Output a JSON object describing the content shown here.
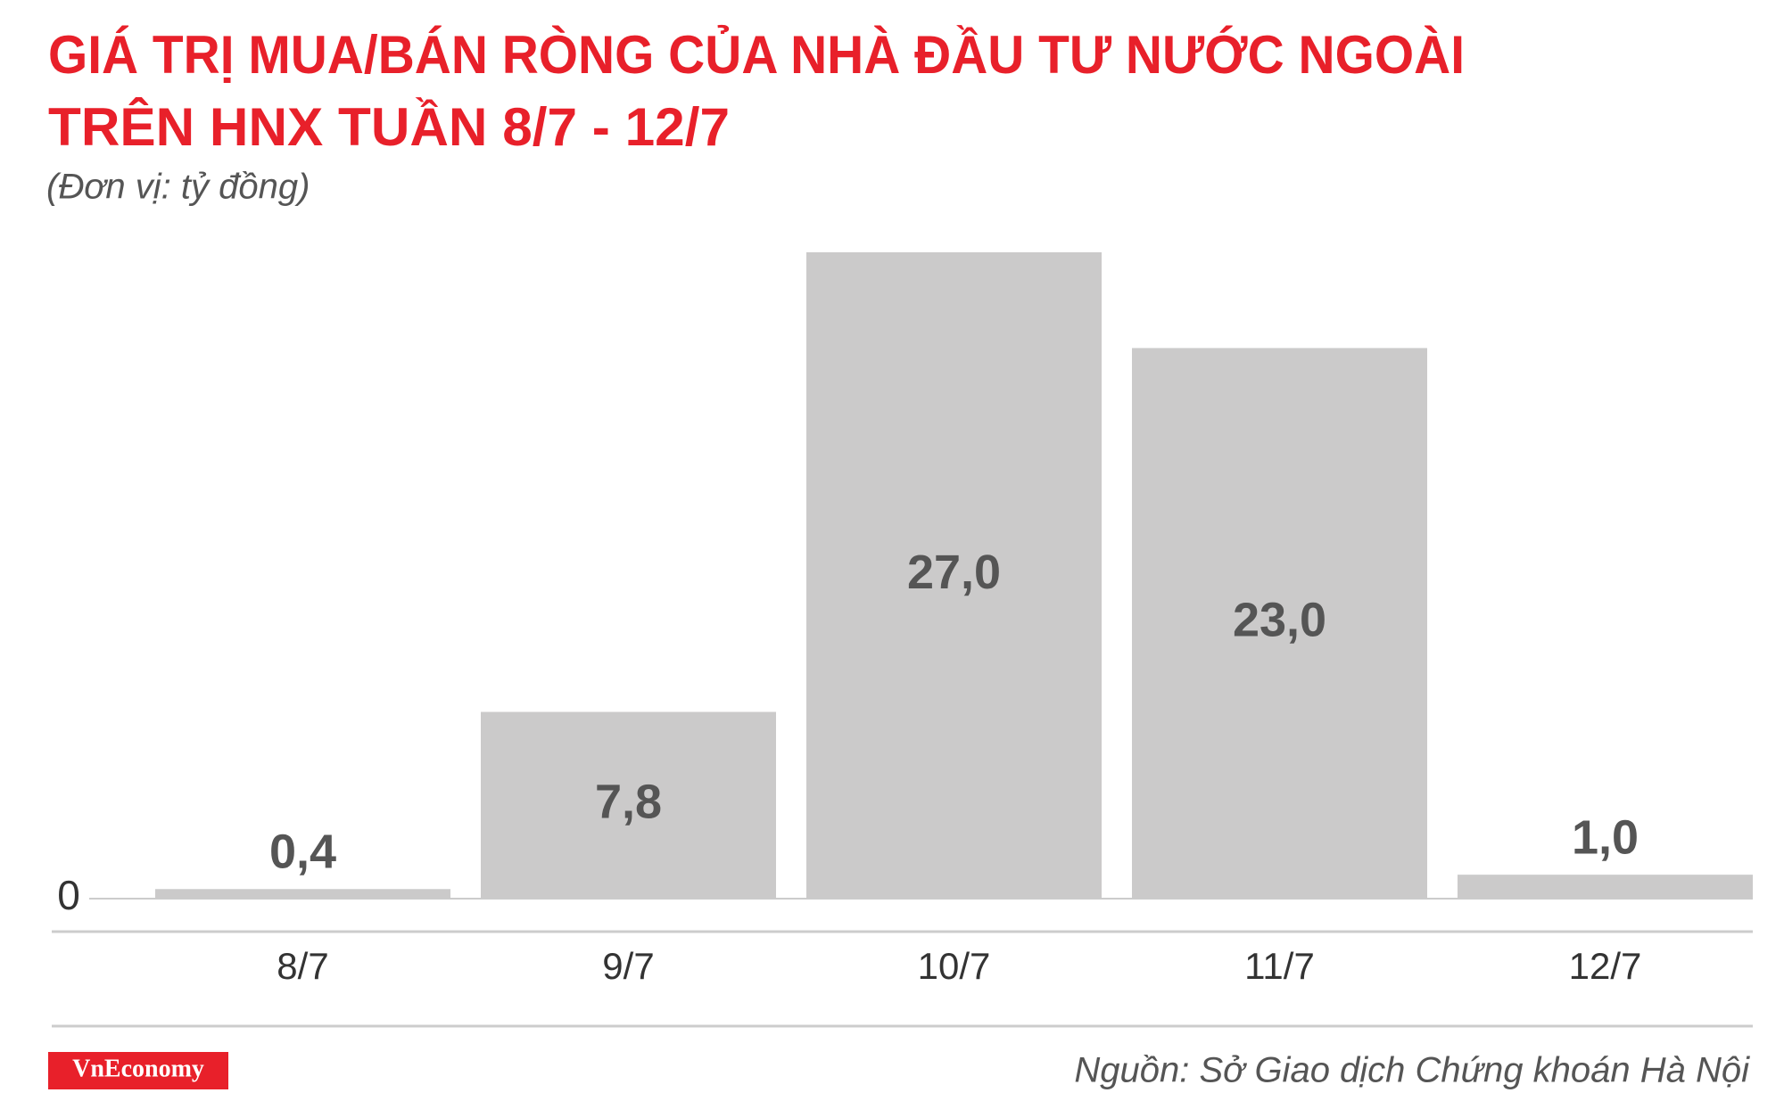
{
  "chart_data": {
    "type": "bar",
    "title": [
      "GIÁ TRỊ MUA/BÁN RÒNG CỦA NHÀ ĐẦU TƯ NƯỚC NGOÀI",
      "TRÊN HNX TUẦN 8/7 - 12/7"
    ],
    "subtitle": "(Đơn vị: tỷ đồng)",
    "categories": [
      "8/7",
      "9/7",
      "10/7",
      "11/7",
      "12/7"
    ],
    "values": [
      0.4,
      7.8,
      27.0,
      23.0,
      1.0
    ],
    "value_labels": [
      "0,4",
      "7,8",
      "27,0",
      "23,0",
      "1,0"
    ],
    "color": "#cbcaca",
    "ylim": [
      0,
      27
    ],
    "yticks": [
      0
    ],
    "grid": false,
    "brand": "VnEconomy",
    "source": "Nguồn: Sở Giao dịch Chứng khoán Hà Nội"
  }
}
